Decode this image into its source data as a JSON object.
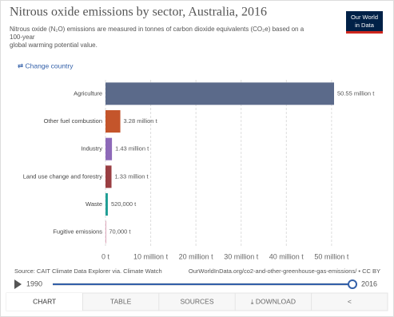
{
  "chart_data": {
    "type": "bar",
    "orientation": "horizontal",
    "title": "Nitrous oxide emissions by sector, Australia, 2016",
    "subtitle": [
      "Nitrous oxide (N₂O) emissions are measured in tonnes of carbon dioxide equivalents (CO₂e) based on a",
      "100-year",
      "global warming potential value."
    ],
    "categories": [
      "Agriculture",
      "Other fuel combustion",
      "Industry",
      "Land use change and forestry",
      "Waste",
      "Fugitive emissions"
    ],
    "values": [
      50.55,
      3.28,
      1.43,
      1.33,
      0.52,
      0.07
    ],
    "value_labels": [
      "50.55 million t",
      "3.28 million t",
      "1.43 million t",
      "1.33 million t",
      "520,000 t",
      "70,000 t"
    ],
    "colors": [
      "#5b6a8a",
      "#c4552b",
      "#8d69b8",
      "#9a3e42",
      "#1f9e95",
      "#c9708f"
    ],
    "xlim": [
      0,
      50.55
    ],
    "xticks": [
      {
        "value": 0,
        "label": "0 t"
      },
      {
        "value": 10,
        "label": "10 million t"
      },
      {
        "value": 20,
        "label": "20 million t"
      },
      {
        "value": 30,
        "label": "30 million t"
      },
      {
        "value": 40,
        "label": "40 million t"
      },
      {
        "value": 50,
        "label": "50 million t"
      }
    ],
    "grid": true,
    "source": "Source: CAIT Climate Data Explorer via. Climate Watch",
    "url": "OurWorldInData.org/co2-and-other-greenhouse-gas-emissions/ • CC BY"
  },
  "ui": {
    "logo": [
      "Our World",
      "in Data"
    ],
    "change_country": "⇄ Change country",
    "timeline": {
      "start": "1990",
      "end": "2016"
    },
    "tabs": [
      "CHART",
      "TABLE",
      "SOURCES",
      "⤓ DOWNLOAD",
      "<"
    ]
  }
}
